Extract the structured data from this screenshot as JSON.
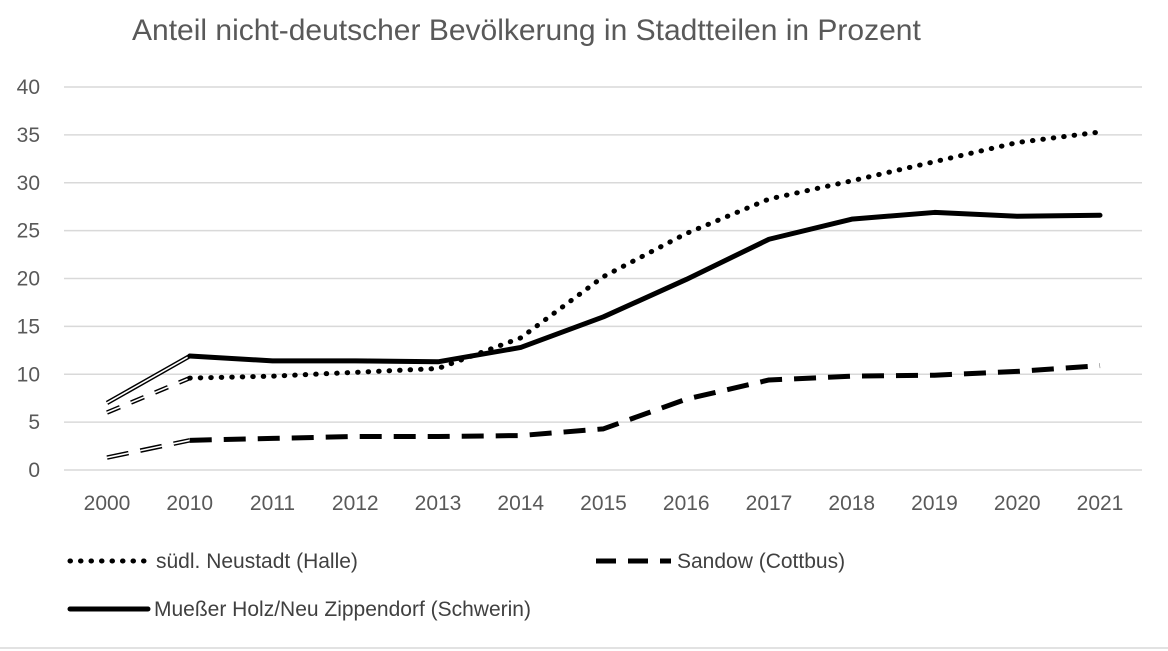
{
  "chart_data": {
    "type": "line",
    "title": "Anteil nicht-deutscher Bevölkerung in Stadtteilen in Prozent",
    "xlabel": "",
    "ylabel": "",
    "ylim": [
      0,
      40
    ],
    "yticks": [
      "0",
      "5",
      "10",
      "15",
      "20",
      "25",
      "30",
      "35",
      "40"
    ],
    "categories": [
      "2000",
      "2010",
      "2011",
      "2012",
      "2013",
      "2014",
      "2015",
      "2016",
      "2017",
      "2018",
      "2019",
      "2020",
      "2021"
    ],
    "grid": true,
    "legend_position": "bottom",
    "series": [
      {
        "name": "südl. Neustadt (Halle)",
        "style": "dotted",
        "color": "#000000",
        "values": [
          6.0,
          9.6,
          9.8,
          10.2,
          10.6,
          13.8,
          20.2,
          24.7,
          28.3,
          30.2,
          32.2,
          34.2,
          35.3
        ]
      },
      {
        "name": "Sandow (Cottbus)",
        "style": "dashed",
        "color": "#000000",
        "values": [
          1.3,
          3.1,
          3.3,
          3.5,
          3.5,
          3.6,
          4.3,
          7.4,
          9.4,
          9.8,
          9.9,
          10.3,
          10.9
        ]
      },
      {
        "name": "Mueßer Holz/Neu Zippendorf (Schwerin)",
        "style": "solid",
        "color": "#000000",
        "values": [
          7.0,
          11.9,
          11.4,
          11.4,
          11.3,
          12.8,
          16.0,
          19.9,
          24.1,
          26.2,
          26.9,
          26.5,
          26.6
        ]
      }
    ]
  }
}
